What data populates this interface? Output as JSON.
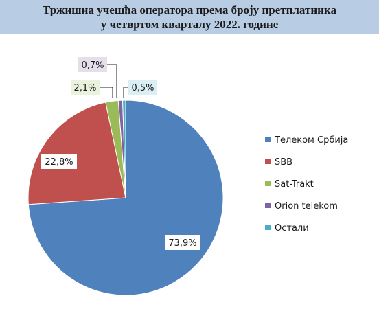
{
  "chart_data": {
    "type": "pie",
    "title_line1": "Тржишна учешћа оператора према броју претплатника",
    "title_line2": "у четвртом кварталу 2022. године",
    "slices": [
      {
        "name": "Телеком Србија",
        "value": 73.9,
        "label": "73,9%",
        "color": "#4f81bd"
      },
      {
        "name": "SBB",
        "value": 22.8,
        "label": "22,8%",
        "color": "#c0504d"
      },
      {
        "name": "Sat-Trakt",
        "value": 2.1,
        "label": "2,1%",
        "color": "#9bbb59"
      },
      {
        "name": "Orion telekom",
        "value": 0.7,
        "label": "0,7%",
        "color": "#8064a2"
      },
      {
        "name": "Остали",
        "value": 0.5,
        "label": "0,5%",
        "color": "#4bacc6"
      }
    ],
    "legend_position": "right",
    "start_angle": "12 o'clock",
    "direction": "clockwise"
  }
}
